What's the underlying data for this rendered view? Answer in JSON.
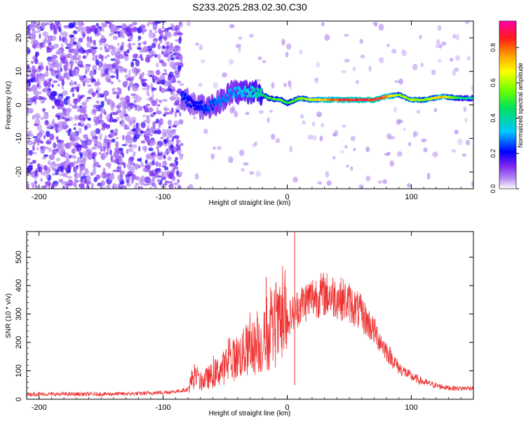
{
  "page_title": "S233.2025.283.02.30.C30",
  "chart_data": [
    {
      "type": "heatmap",
      "title": "S233.2025.283.02.30.C30",
      "xlabel": "Height of straight line (km)",
      "ylabel": "Frequency (Hz)",
      "xlim": [
        -210,
        150
      ],
      "ylim": [
        -25,
        25
      ],
      "xticks": [
        -200,
        -100,
        0,
        100
      ],
      "xtick_labels": [
        "-200",
        "-100",
        "0",
        "100"
      ],
      "yticks": [
        -20,
        -10,
        0,
        10,
        20
      ],
      "ytick_labels": [
        "-20",
        "-10",
        "0",
        "10",
        "20"
      ],
      "colorbar": {
        "label": "Normalized spectral amplitude",
        "range": [
          0.0,
          0.95
        ],
        "ticks": [
          0.0,
          0.2,
          0.4,
          0.6,
          0.8
        ],
        "tick_labels": [
          "0.0",
          "0.2",
          "0.4",
          "0.6",
          "0.8"
        ],
        "colormap": "rainbow (white-violet-blue-cyan-green-yellow-orange-red-magenta)"
      },
      "signal_track": {
        "description": "narrow spectral line near 1-3 Hz from about -85 km to 150 km; noise-dominated below about -85 km",
        "points": [
          {
            "x": -85,
            "freq": 2.5,
            "amp": 0.25
          },
          {
            "x": -75,
            "freq": 0.0,
            "amp": 0.2
          },
          {
            "x": -65,
            "freq": -1.0,
            "amp": 0.25
          },
          {
            "x": -55,
            "freq": 1.0,
            "amp": 0.28
          },
          {
            "x": -45,
            "freq": 3.5,
            "amp": 0.3
          },
          {
            "x": -35,
            "freq": 4.0,
            "amp": 0.35
          },
          {
            "x": -25,
            "freq": 4.0,
            "amp": 0.4
          },
          {
            "x": -15,
            "freq": 2.0,
            "amp": 0.5
          },
          {
            "x": -5,
            "freq": 1.5,
            "amp": 0.55
          },
          {
            "x": 0,
            "freq": 0.5,
            "amp": 0.5
          },
          {
            "x": 10,
            "freq": 2.0,
            "amp": 0.6
          },
          {
            "x": 20,
            "freq": 1.5,
            "amp": 0.65
          },
          {
            "x": 30,
            "freq": 1.5,
            "amp": 0.8
          },
          {
            "x": 50,
            "freq": 1.5,
            "amp": 0.9
          },
          {
            "x": 70,
            "freq": 1.5,
            "amp": 0.9
          },
          {
            "x": 80,
            "freq": 2.5,
            "amp": 0.85
          },
          {
            "x": 90,
            "freq": 3.0,
            "amp": 0.6
          },
          {
            "x": 100,
            "freq": 1.5,
            "amp": 0.65
          },
          {
            "x": 110,
            "freq": 1.5,
            "amp": 0.6
          },
          {
            "x": 125,
            "freq": 2.5,
            "amp": 0.75
          },
          {
            "x": 140,
            "freq": 2.0,
            "amp": 0.45
          },
          {
            "x": 150,
            "freq": 2.0,
            "amp": 0.4
          }
        ]
      }
    },
    {
      "type": "line",
      "xlabel": "Height of straight line (km)",
      "ylabel": "SNR (10 * v/v)",
      "xlim": [
        -210,
        150
      ],
      "ylim": [
        0,
        590
      ],
      "xticks": [
        -200,
        -100,
        0,
        100
      ],
      "xtick_labels": [
        "-200",
        "-100",
        "0",
        "100"
      ],
      "yticks": [
        0,
        100,
        200,
        300,
        400,
        500
      ],
      "ytick_labels": [
        "0",
        "100",
        "200",
        "300",
        "400",
        "500"
      ],
      "series": [
        {
          "name": "SNR",
          "color": "#ee3333",
          "envelope": {
            "x": [
              -210,
              -180,
              -150,
              -120,
              -100,
              -90,
              -80,
              -76,
              -70,
              -60,
              -50,
              -40,
              -30,
              -20,
              -10,
              0,
              10,
              20,
              30,
              40,
              50,
              60,
              70,
              80,
              90,
              100,
              110,
              120,
              130,
              140,
              150
            ],
            "y": [
              18,
              18,
              18,
              20,
              24,
              27,
              35,
              80,
              60,
              85,
              115,
              150,
              175,
              195,
              240,
              280,
              330,
              360,
              370,
              360,
              340,
              300,
              240,
              170,
              110,
              80,
              60,
              48,
              40,
              38,
              40
            ]
          },
          "spikes": [
            {
              "x": -17,
              "y": 430
            },
            {
              "x": 6,
              "y": 590
            },
            {
              "x": 6,
              "y": 50
            }
          ]
        }
      ]
    }
  ]
}
